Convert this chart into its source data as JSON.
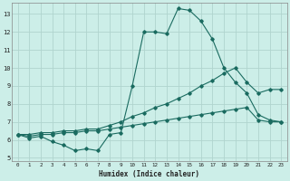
{
  "title": "",
  "xlabel": "Humidex (Indice chaleur)",
  "background_color": "#cceee8",
  "grid_color": "#b0d4ce",
  "line_color": "#1a6b60",
  "xlim": [
    -0.5,
    23.5
  ],
  "ylim": [
    4.8,
    13.6
  ],
  "xticks": [
    0,
    1,
    2,
    3,
    4,
    5,
    6,
    7,
    8,
    9,
    10,
    11,
    12,
    13,
    14,
    15,
    16,
    17,
    18,
    19,
    20,
    21,
    22,
    23
  ],
  "yticks": [
    5,
    6,
    7,
    8,
    9,
    10,
    11,
    12,
    13
  ],
  "line1_x": [
    0,
    1,
    2,
    3,
    4,
    5,
    6,
    7,
    8,
    9,
    10,
    11,
    12,
    13,
    14,
    15,
    16,
    17,
    18,
    19,
    20,
    21,
    22,
    23
  ],
  "line1_y": [
    6.3,
    6.1,
    6.2,
    5.9,
    5.7,
    5.4,
    5.5,
    5.4,
    6.3,
    6.4,
    9.0,
    12.0,
    12.0,
    11.9,
    13.3,
    13.2,
    12.6,
    11.6,
    10.0,
    9.2,
    8.6,
    7.4,
    7.1,
    7.0
  ],
  "line2_x": [
    0,
    1,
    2,
    3,
    4,
    5,
    6,
    7,
    8,
    9,
    10,
    11,
    12,
    13,
    14,
    15,
    16,
    17,
    18,
    19,
    20,
    21,
    22,
    23
  ],
  "line2_y": [
    6.3,
    6.3,
    6.4,
    6.4,
    6.5,
    6.5,
    6.6,
    6.6,
    6.8,
    7.0,
    7.3,
    7.5,
    7.8,
    8.0,
    8.3,
    8.6,
    9.0,
    9.3,
    9.7,
    10.0,
    9.2,
    8.6,
    8.8,
    8.8
  ],
  "line3_x": [
    0,
    1,
    2,
    3,
    4,
    5,
    6,
    7,
    8,
    9,
    10,
    11,
    12,
    13,
    14,
    15,
    16,
    17,
    18,
    19,
    20,
    21,
    22,
    23
  ],
  "line3_y": [
    6.3,
    6.2,
    6.3,
    6.3,
    6.4,
    6.4,
    6.5,
    6.5,
    6.6,
    6.7,
    6.8,
    6.9,
    7.0,
    7.1,
    7.2,
    7.3,
    7.4,
    7.5,
    7.6,
    7.7,
    7.8,
    7.1,
    7.0,
    7.0
  ]
}
